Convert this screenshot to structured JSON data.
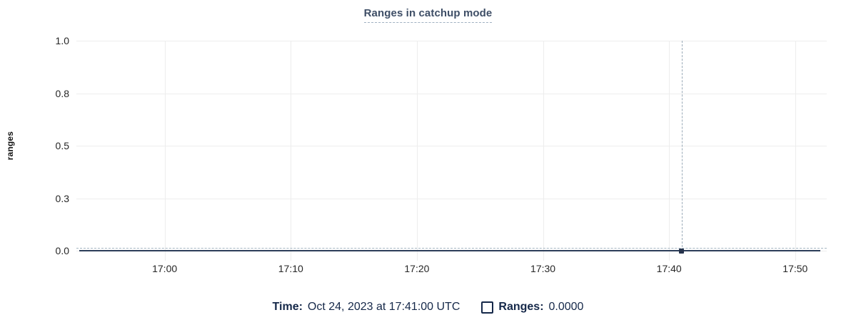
{
  "title": "Ranges in catchup mode",
  "y_axis_label": "ranges",
  "legend": {
    "time_label": "Time:",
    "time_value": "Oct 24, 2023 at 17:41:00 UTC",
    "series_checkbox": "unchecked",
    "series_label": "Ranges:",
    "series_value": "0.0000"
  },
  "colors": {
    "series_line": "#2c3d59",
    "marker": "#26334c",
    "dashed_guideline": "#a6b6c3",
    "crosshair": "#9aaab8",
    "gridline": "#ededed",
    "title_text": "#3e4e66",
    "legend_text": "#152849",
    "axis_tick_text": "#262626"
  },
  "chart_data": {
    "type": "line",
    "title": "Ranges in catchup mode",
    "xlabel": "",
    "ylabel": "ranges",
    "ylim": [
      0,
      1
    ],
    "grid": true,
    "legend_position": "bottom-center",
    "y_ticks": [
      {
        "value": 0,
        "label": "0.0"
      },
      {
        "value": 0.25,
        "label": "0.3"
      },
      {
        "value": 0.5,
        "label": "0.5"
      },
      {
        "value": 0.75,
        "label": "0.8"
      },
      {
        "value": 1,
        "label": "1.0"
      }
    ],
    "x_ticks": [
      {
        "minute": 1020,
        "label": "17:00"
      },
      {
        "minute": 1030,
        "label": "17:10"
      },
      {
        "minute": 1040,
        "label": "17:20"
      },
      {
        "minute": 1050,
        "label": "17:30"
      },
      {
        "minute": 1060,
        "label": "17:40"
      },
      {
        "minute": 1070,
        "label": "17:50"
      }
    ],
    "x_domain_minutes": [
      1013,
      1072.5
    ],
    "series": [
      {
        "name": "Ranges",
        "y_value": 0,
        "x_start_min": 1013.2,
        "x_end_min": 1072,
        "color": "#2c3d59",
        "note": "flat line at 0 across entire time range"
      }
    ],
    "hover": {
      "x_minute": 1061,
      "time": "Oct 24, 2023 at 17:41:00 UTC",
      "value": 0,
      "value_label": "0.0000"
    }
  }
}
